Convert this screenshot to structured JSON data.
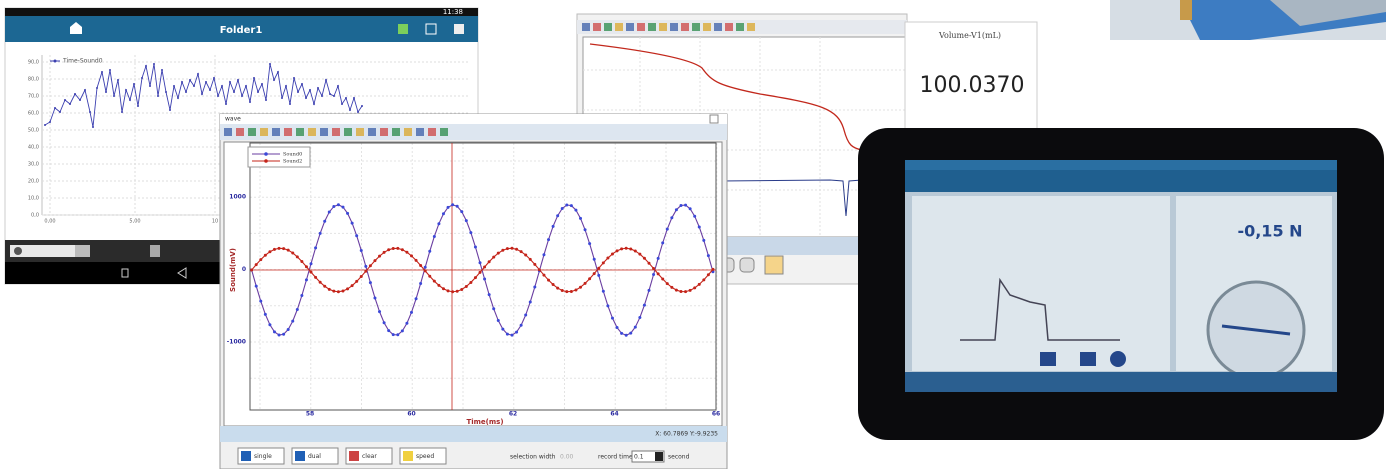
{
  "android_app": {
    "status_time": "11:38",
    "title": "Folder1",
    "legend": "Time-Sound0",
    "yticks": [
      "90,0",
      "80,0",
      "70,0",
      "60,0",
      "50,0",
      "40,0",
      "30,0",
      "20,0",
      "10,0",
      "0,0"
    ],
    "xticks": [
      "0,00",
      "5,00",
      "10"
    ]
  },
  "logger_window": {
    "volume_label": "Volume-V1(mL)",
    "volume_value": "100.0370"
  },
  "wave_window": {
    "title": "wave",
    "legend": [
      "Sound0",
      "Sound2"
    ],
    "yticks": [
      "1000",
      "0",
      "-1000"
    ],
    "y_label": "Sound(mV)",
    "xticks": [
      "58",
      "60",
      "62",
      "64",
      "66"
    ],
    "x_label": "Time(ms)",
    "status": "X: 60.7869  Y:-9.9235",
    "buttons": [
      "single",
      "dual",
      "clear",
      "speed"
    ],
    "selection_width_label": "selection width",
    "selection_width": "0.00",
    "record_time_label": "record time",
    "record_time": "0.1",
    "record_unit": "second"
  },
  "tablet": {
    "reading": "-0,15 N"
  }
}
